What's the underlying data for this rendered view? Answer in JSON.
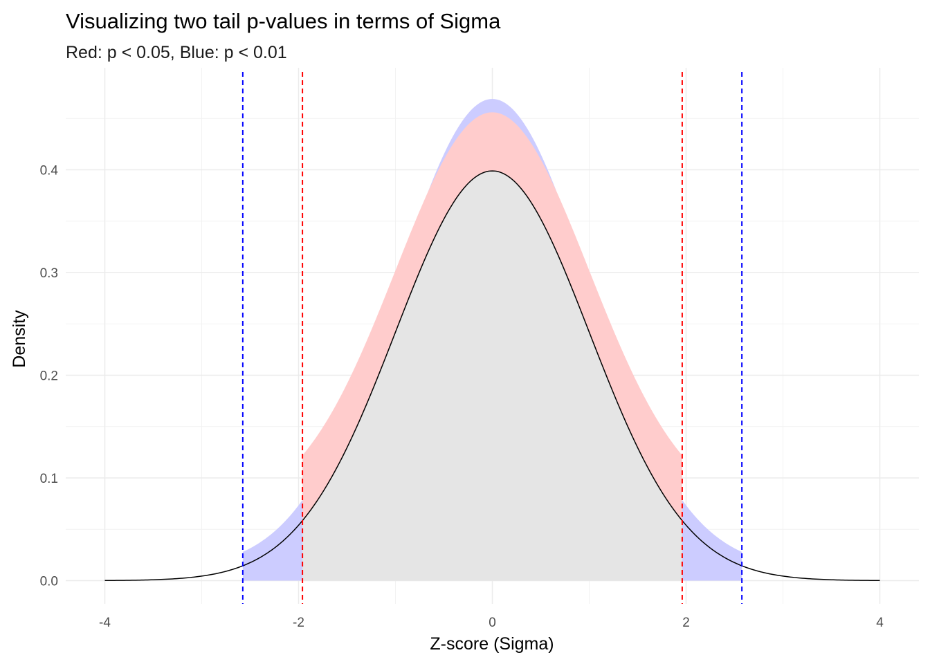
{
  "chart_data": {
    "type": "area",
    "title": "Visualizing two tail p-values in terms of Sigma",
    "subtitle": "Red: p < 0.05, Blue: p < 0.01",
    "xlabel": "Z-score (Sigma)",
    "ylabel": "Density",
    "xlim": [
      -4,
      4
    ],
    "ylim": [
      0,
      0.47
    ],
    "x_ticks": [
      -4,
      -2,
      0,
      2,
      4
    ],
    "x_tick_labels": [
      "-4",
      "-2",
      "0",
      "2",
      "4"
    ],
    "y_ticks": [
      0.0,
      0.1,
      0.2,
      0.3,
      0.4
    ],
    "y_tick_labels": [
      "0.0",
      "0.1",
      "0.2",
      "0.3",
      "0.4"
    ],
    "grid": true,
    "density_curve": {
      "distribution": "standard normal",
      "x": [
        -4.0,
        -3.5,
        -3.0,
        -2.576,
        -2.5,
        -2.0,
        -1.96,
        -1.5,
        -1.0,
        -0.5,
        0.0,
        0.5,
        1.0,
        1.5,
        1.96,
        2.0,
        2.5,
        2.576,
        3.0,
        3.5,
        4.0
      ],
      "y": [
        0.0001,
        0.0009,
        0.0044,
        0.0145,
        0.0175,
        0.054,
        0.0584,
        0.1295,
        0.242,
        0.3521,
        0.3989,
        0.3521,
        0.242,
        0.1295,
        0.0584,
        0.054,
        0.0175,
        0.0145,
        0.0044,
        0.0009,
        0.0001
      ],
      "color": "#000000",
      "fill": "#e5e5e5"
    },
    "bands": [
      {
        "name": "p < 0.05",
        "x_range": [
          -1.96,
          1.96
        ],
        "upper_y_at_0": 0.456,
        "upper_y_at_edges": 0.122,
        "color": "#ffcccc"
      },
      {
        "name": "p < 0.01",
        "x_range": [
          -2.576,
          2.576
        ],
        "upper_y_at_0": 0.469,
        "upper_y_at_edges": 0.028,
        "color": "#ccccff"
      }
    ],
    "vlines": [
      {
        "x": -2.576,
        "color": "#0000ff",
        "style": "dashed"
      },
      {
        "x": -1.96,
        "color": "#ff0000",
        "style": "dashed"
      },
      {
        "x": 1.96,
        "color": "#ff0000",
        "style": "dashed"
      },
      {
        "x": 2.576,
        "color": "#0000ff",
        "style": "dashed"
      }
    ]
  }
}
